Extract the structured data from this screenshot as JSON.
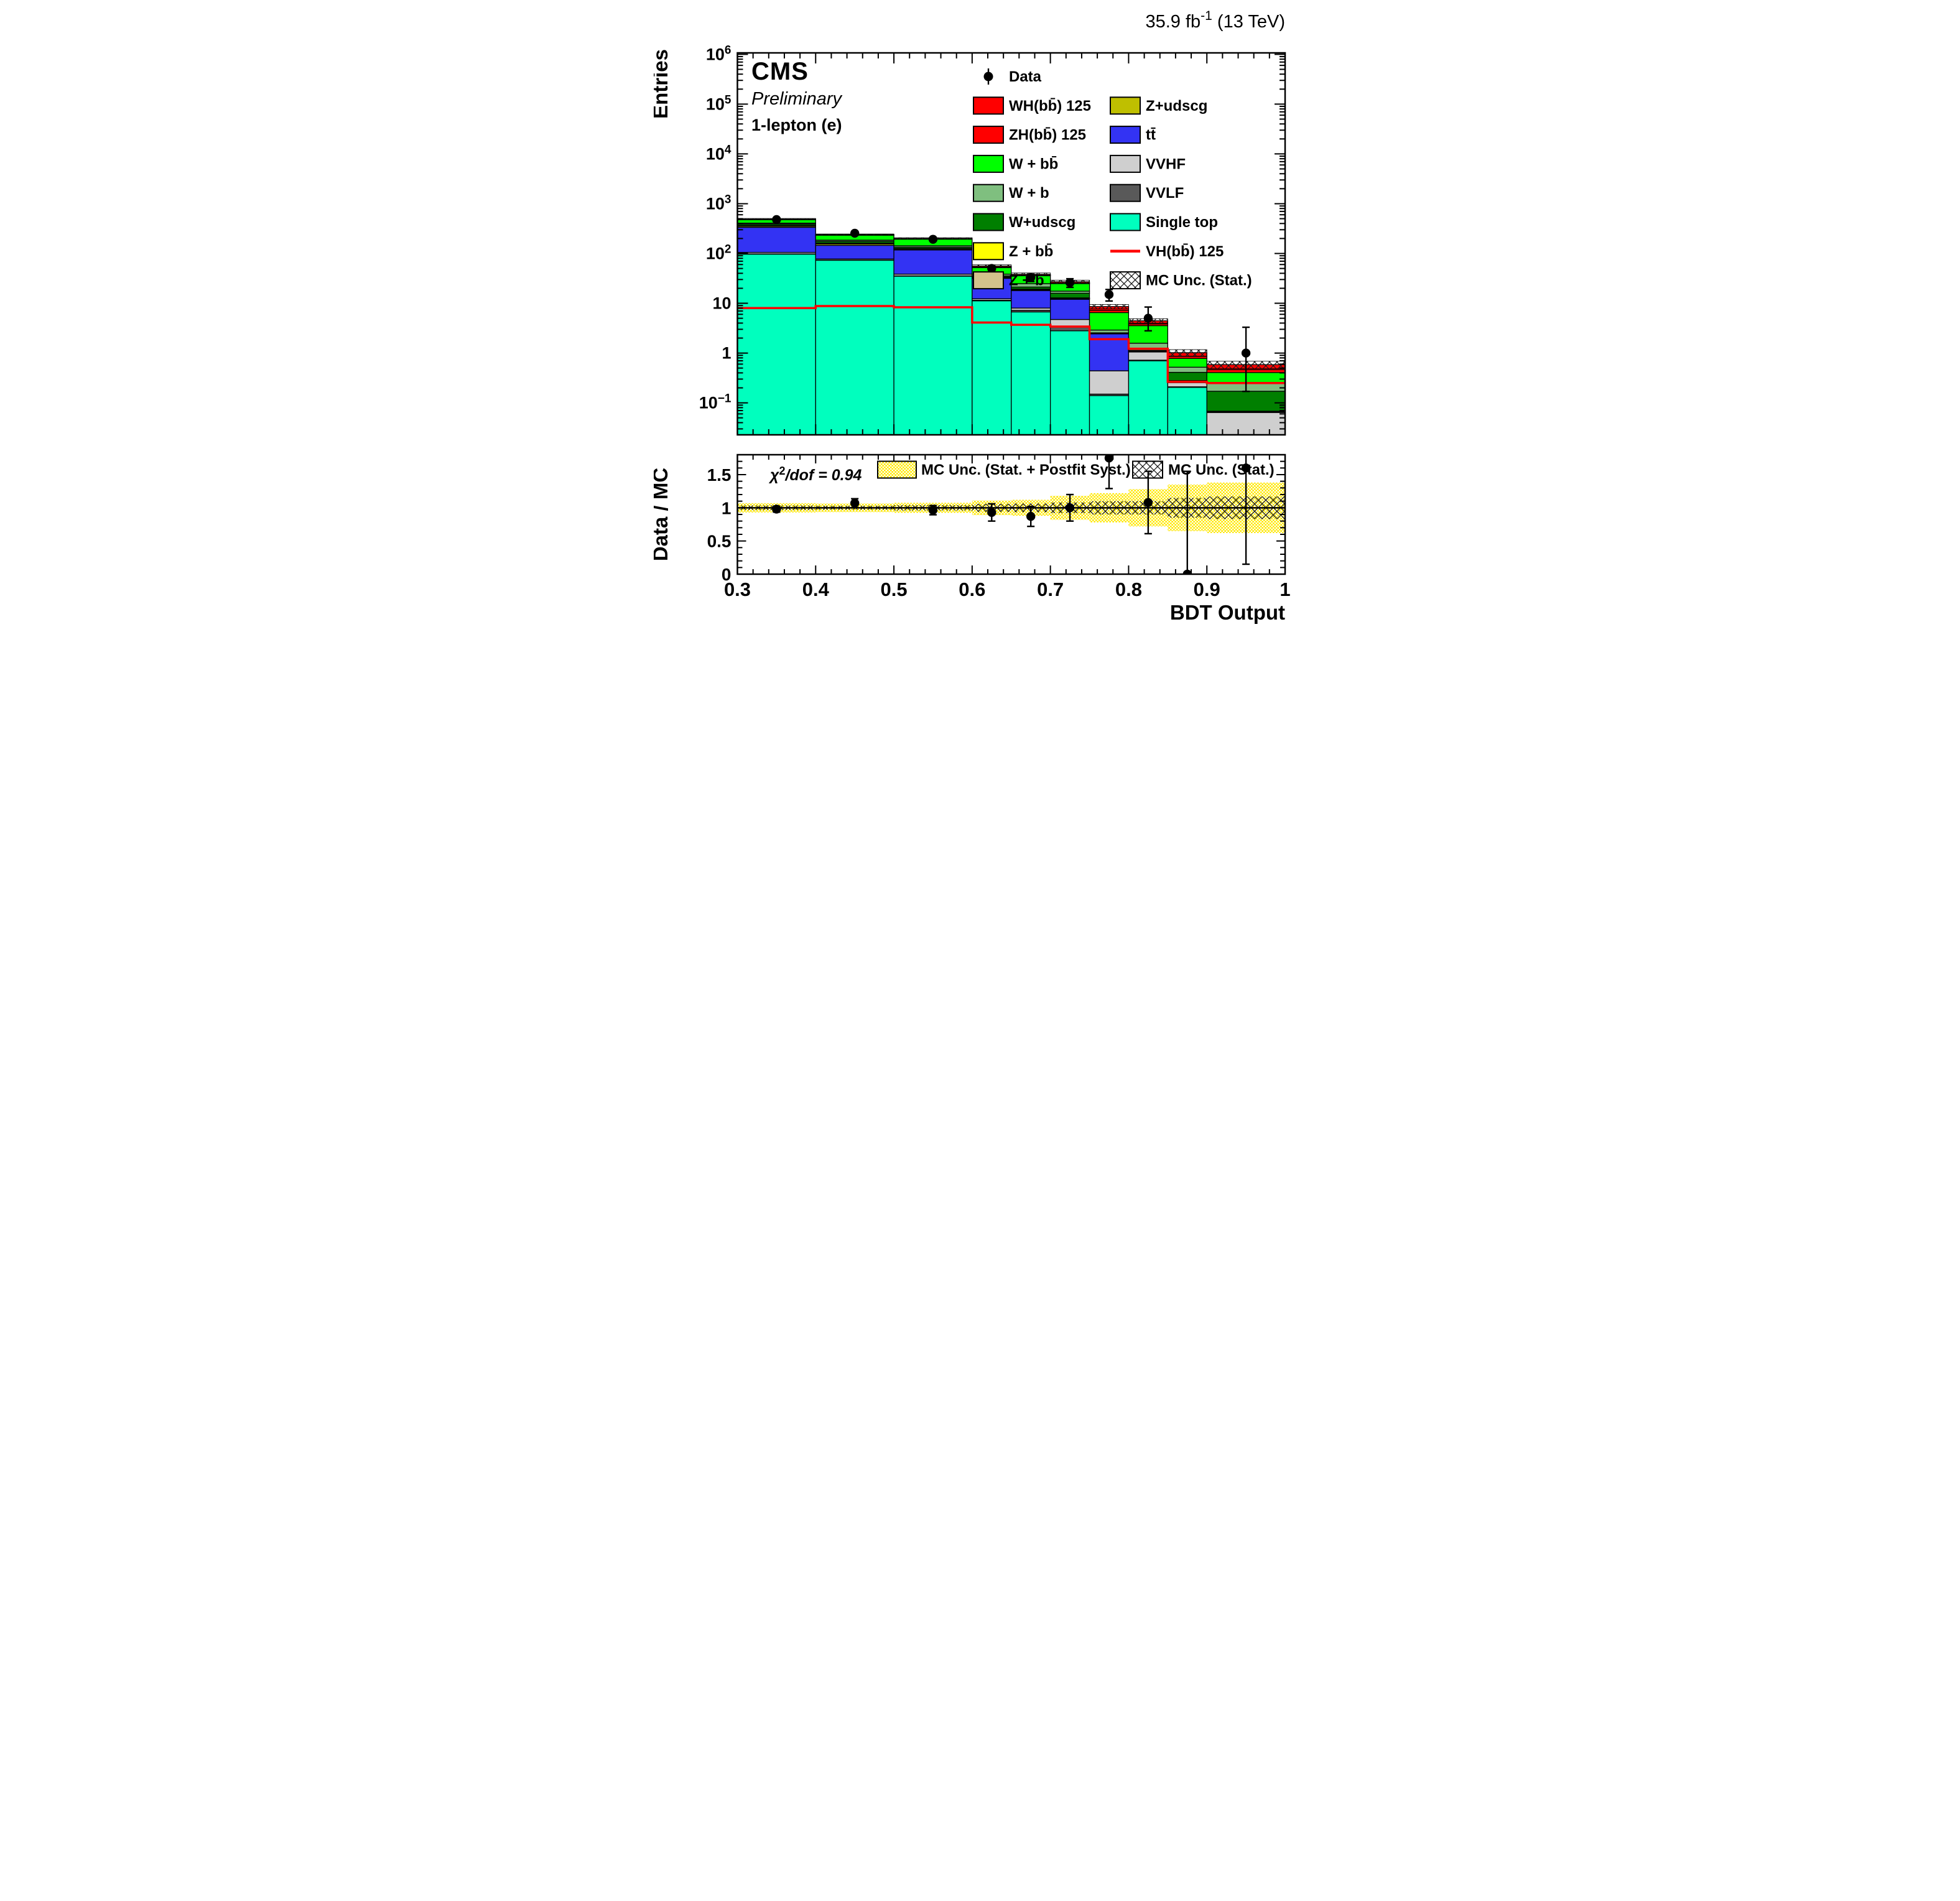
{
  "header": {
    "lumi_prefix": "35.9 fb",
    "lumi_sup": "-1",
    "lumi_suffix": " (13 TeV)"
  },
  "labels": {
    "experiment": "CMS",
    "status": "Preliminary",
    "channel": "1-lepton (e)",
    "y_title": "Entries",
    "ratio_y_title": "Data / MC",
    "x_title": "BDT Output",
    "chi2_chi": "χ",
    "chi2_sup": "2",
    "chi2_rest": "/dof = 0.94"
  },
  "legend_main": {
    "column1": [
      {
        "type": "marker",
        "label": "Data"
      },
      {
        "type": "box",
        "color": "#ff0000",
        "label": "WH(bb̄) 125"
      },
      {
        "type": "box",
        "color": "#ff0000",
        "label": "ZH(bb̄) 125"
      },
      {
        "type": "box",
        "color": "#00ff00",
        "label": "W + bb̄"
      },
      {
        "type": "box",
        "color": "#7fbf7f",
        "label": "W + b"
      },
      {
        "type": "box",
        "color": "#007f00",
        "label": "W+udscg"
      },
      {
        "type": "box",
        "color": "#ffff00",
        "label": "Z + bb̄"
      },
      {
        "type": "box",
        "color": "#d2c28c",
        "label": "Z + b"
      }
    ],
    "column2": [
      {
        "type": "box",
        "color": "#bfbf00",
        "label": "Z+udscg"
      },
      {
        "type": "box",
        "color": "#3333f3",
        "label": "tt̄"
      },
      {
        "type": "box",
        "color": "#cfcfcf",
        "label": "VVHF"
      },
      {
        "type": "box",
        "color": "#595959",
        "label": "VVLF"
      },
      {
        "type": "box",
        "color": "#00ffbe",
        "label": "Single top"
      },
      {
        "type": "line",
        "color": "#ff0000",
        "label": "VH(bb̄) 125"
      },
      {
        "type": "hatch",
        "label": "MC Unc. (Stat.)"
      }
    ]
  },
  "legend_ratio": [
    {
      "type": "yellow-band",
      "label": "MC Unc. (Stat. + Postfit Syst.)"
    },
    {
      "type": "hatch",
      "label": "MC Unc. (Stat.)"
    }
  ],
  "chart_data": {
    "type": "stacked-step-histogram-with-ratio",
    "x_label": "BDT Output",
    "y_label": "Entries",
    "y_scale": "log",
    "y_range": [
      0.0228,
      1070000
    ],
    "x_range": [
      0.3,
      1.0
    ],
    "x_edges": [
      0.3,
      0.4,
      0.5,
      0.6,
      0.65,
      0.7,
      0.75,
      0.8,
      0.85,
      0.9,
      1.0
    ],
    "x_major_ticks": [
      "0.3",
      "0.4",
      "0.5",
      "0.6",
      "0.7",
      "0.8",
      "0.9",
      "1"
    ],
    "y_decade_exponents": [
      -1,
      0,
      1,
      2,
      3,
      4,
      5,
      6
    ],
    "series": [
      {
        "name": "Single top",
        "color": "#00ffbe",
        "values": [
          97,
          73,
          35,
          11.2,
          6.7,
          2.8,
          0.14,
          0.7,
          0.205,
          0
        ]
      },
      {
        "name": "VVLF",
        "color": "#595959",
        "values": [
          1.0,
          0.8,
          0.5,
          0.3,
          0.55,
          0.58,
          0.01,
          0.02,
          0.005,
          0.002
        ]
      },
      {
        "name": "VVHF",
        "color": "#cfcfcf",
        "values": [
          7,
          3.7,
          3.0,
          0.8,
          0.75,
          1.35,
          0.29,
          0.33,
          0.045,
          0.062
        ]
      },
      {
        "name": "tt̄",
        "color": "#3333f3",
        "values": [
          230,
          68,
          79,
          19.4,
          10.0,
          7.3,
          2.0,
          0.02,
          0.015,
          0.001
        ]
      },
      {
        "name": "Z+udscg",
        "color": "#bfbf00",
        "values": [
          18,
          10,
          5,
          1.2,
          0.7,
          0.4,
          0.02,
          0.01,
          0.004,
          0.001
        ]
      },
      {
        "name": "Z + b",
        "color": "#d2c28c",
        "values": [
          4,
          2,
          1,
          0.3,
          0.2,
          0.1,
          0.01,
          0.01,
          0.003,
          0.001
        ]
      },
      {
        "name": "Z + bb̄",
        "color": "#ffff00",
        "values": [
          8,
          4,
          2.5,
          0.6,
          0.4,
          0.3,
          0.03,
          0.01,
          0.003,
          0.001
        ]
      },
      {
        "name": "W+udscg",
        "color": "#007f00",
        "values": [
          25,
          14,
          8,
          1.7,
          1.9,
          3.1,
          0.05,
          0.03,
          0.13,
          0.103
        ]
      },
      {
        "name": "W + b",
        "color": "#7fbf7f",
        "values": [
          18,
          10,
          9,
          3.0,
          3.6,
          1.6,
          0.35,
          0.45,
          0.11,
          0.08
        ]
      },
      {
        "name": "W + bb̄",
        "color": "#00ff00",
        "values": [
          75,
          48,
          52,
          13.5,
          11.0,
          7.3,
          3.6,
          1.97,
          0.26,
          0.155
        ]
      },
      {
        "name": "ZH(bb̄) 125",
        "color": "#ff0000",
        "values": [
          2,
          2,
          1.7,
          1.3,
          0.8,
          0.7,
          0.75,
          0.3,
          0.08,
          0.06
        ]
      },
      {
        "name": "WH(bb̄) 125",
        "color": "#ff0000",
        "values": [
          4,
          4,
          3.3,
          2.7,
          1.6,
          1.5,
          1.35,
          0.6,
          0.16,
          0.12
        ]
      }
    ],
    "mc_total": [
      489,
      239.5,
      200,
      56,
      38.2,
      27,
      8.6,
      4.45,
      1.02,
      0.586
    ],
    "mc_stat_frac": [
      0.035,
      0.03,
      0.04,
      0.06,
      0.065,
      0.08,
      0.1,
      0.1,
      0.15,
      0.17
    ],
    "signal_line": {
      "name": "VH(bb̄) 125",
      "color": "#ff0000",
      "values": [
        8.0,
        8.8,
        8.3,
        4.1,
        3.7,
        3.4,
        1.9,
        1.22,
        0.265,
        0.25
      ]
    },
    "data_points": {
      "name": "Data",
      "values": [
        480,
        255,
        193,
        50,
        33,
        26,
        15,
        5,
        0,
        1
      ],
      "err_up": [
        21.9,
        16.0,
        13.9,
        7.1,
        5.7,
        5.1,
        3.9,
        3.4,
        0,
        2.3
      ],
      "err_dn": [
        21.9,
        16.0,
        13.9,
        7.1,
        5.7,
        5.1,
        3.9,
        2.2,
        0,
        0.83
      ]
    },
    "ratio": {
      "y_range": [
        0,
        1.8
      ],
      "y_major_ticks": [
        "0",
        "0.5",
        "1",
        "1.5"
      ],
      "values": [
        0.98,
        1.07,
        0.965,
        0.93,
        0.87,
        1.0,
        1.75,
        1.08,
        0.0,
        1.6
      ],
      "err_up": [
        0.045,
        0.067,
        0.07,
        0.13,
        0.15,
        0.2,
        0.46,
        0.47,
        1.55,
        1.45
      ],
      "err_dn": [
        0.045,
        0.067,
        0.07,
        0.13,
        0.15,
        0.2,
        0.46,
        0.47,
        0.0,
        1.45
      ],
      "band_syst": [
        0.07,
        0.065,
        0.075,
        0.11,
        0.12,
        0.18,
        0.22,
        0.28,
        0.35,
        0.38
      ],
      "band_stat": [
        0.035,
        0.03,
        0.04,
        0.06,
        0.065,
        0.08,
        0.1,
        0.1,
        0.15,
        0.17
      ],
      "chi2_over_dof": 0.94
    }
  }
}
